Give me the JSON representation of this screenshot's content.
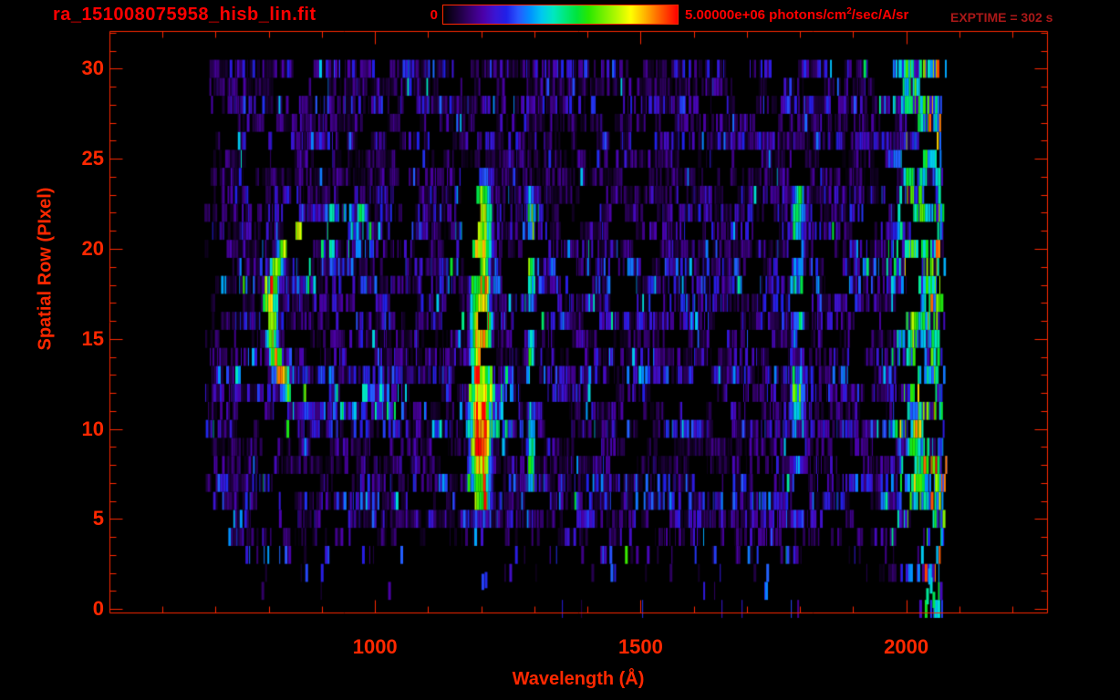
{
  "window": {
    "title": "ra_151008075958_hisb_lin.fit",
    "exptime": "EXPTIME = 302 s"
  },
  "colorbar": {
    "min_label": "0",
    "max_label_prefix": "5.00000e+06 photons/cm",
    "max_label_exponent": "2",
    "max_label_suffix": "/sec/A/sr",
    "range": [
      0,
      5000000
    ]
  },
  "colors": {
    "title_red": "#ff0000",
    "axis_red": "#ff2800",
    "exptime_red": "#aa1818",
    "background": "#000000"
  },
  "chart_data": {
    "type": "heatmap",
    "title": "ra_151008075958_hisb_lin.fit",
    "xlabel": "Wavelength (Å)",
    "ylabel": "Spatial Row (PIxel)",
    "xlim": [
      500,
      2265
    ],
    "ylim": [
      -0.2,
      32.1
    ],
    "x_major_ticks": [
      1000,
      1500,
      2000
    ],
    "x_minor_step": 100,
    "x_minor_range": [
      600,
      2200
    ],
    "y_major_ticks": [
      0,
      5,
      10,
      15,
      20,
      25,
      30
    ],
    "y_minor_step": 1,
    "y_minor_range": [
      0,
      32
    ],
    "colorbar_range_photons": [
      0,
      5000000
    ],
    "intensity_units": "photons/cm^2/sec/A/sr",
    "exptime_seconds": 302,
    "palette": [
      [
        0.0,
        "#000000"
      ],
      [
        0.05,
        "#16002e"
      ],
      [
        0.11,
        "#33006b"
      ],
      [
        0.17,
        "#4b00a8"
      ],
      [
        0.22,
        "#3c14d2"
      ],
      [
        0.27,
        "#2020e8"
      ],
      [
        0.32,
        "#2858ff"
      ],
      [
        0.37,
        "#0090ff"
      ],
      [
        0.42,
        "#00c8f0"
      ],
      [
        0.47,
        "#00e8c0"
      ],
      [
        0.52,
        "#00e87a"
      ],
      [
        0.57,
        "#00e43c"
      ],
      [
        0.62,
        "#28e800"
      ],
      [
        0.68,
        "#70f000"
      ],
      [
        0.74,
        "#b4f800"
      ],
      [
        0.8,
        "#ffff00"
      ],
      [
        0.86,
        "#ffb400"
      ],
      [
        0.92,
        "#ff6400"
      ],
      [
        1.0,
        "#ff0000"
      ]
    ],
    "image": {
      "seed": 151008,
      "data_wavelength_start": 678,
      "data_wavelength_end": 2058,
      "row_min": 0,
      "row_max": 30,
      "noise": {
        "black_fraction": 0.24,
        "base_amplitude": 0.27,
        "bright_streak_prob": 0.055,
        "gap_run_prob": 0.03,
        "row_density": {
          "r0": 0.03,
          "r1": 0.04,
          "r2": 0.09,
          "r3": 0.32,
          "r4": 0.72,
          "default": 1.0
        }
      },
      "features": [
        {
          "kind": "crescent",
          "label": "crescent-arc",
          "center_wavelength": 878,
          "center_row": 16.3,
          "radius_wavelength": 86,
          "radius_rows": 5.4,
          "ring_inner": 0.62,
          "ring_outer": 1.12,
          "angle_min_deg": 58,
          "angle_max_deg": 302,
          "peak_value": 0.6,
          "left_side_boost": 0.1
        },
        {
          "kind": "line",
          "label": "bright-emission-line",
          "wavelength": 1199,
          "core_halfwidth": 9,
          "wing_halfwidth": 26,
          "row_min": 4.7,
          "row_max": 24.5,
          "value": 0.66,
          "hot_rows": [
            9,
            10,
            11,
            15,
            16
          ],
          "hot_boost": 0.15
        },
        {
          "kind": "line",
          "label": "secondary-emission-line",
          "wavelength": 1294,
          "core_halfwidth": 4,
          "wing_halfwidth": 9,
          "row_min": 5.3,
          "row_max": 23.8,
          "value": 0.35,
          "hot_rows": [
            6,
            7,
            8,
            19,
            20,
            21,
            22
          ],
          "hot_boost": 0.1
        },
        {
          "kind": "line",
          "label": "faint-emission-band",
          "wavelength": 1796,
          "core_halfwidth": 7,
          "wing_halfwidth": 16,
          "row_min": 4.2,
          "row_max": 24.6,
          "value": 0.27,
          "hot_rows": [
            10,
            11,
            12,
            20,
            21,
            22
          ],
          "hot_boost": 0.1,
          "patchy": true
        },
        {
          "kind": "patch",
          "label": "cyan-wing-upper",
          "wavelength_min": 905,
          "wavelength_max": 1000,
          "row_min": 20,
          "row_max": 22,
          "value": 0.27,
          "prob": 0.55
        },
        {
          "kind": "patch",
          "label": "cyan-wing-lower",
          "wavelength_min": 905,
          "wavelength_max": 1060,
          "row_min": 11,
          "row_max": 12,
          "value": 0.28,
          "prob": 0.5
        },
        {
          "kind": "patch",
          "label": "cyan-wing-line-right",
          "wavelength_min": 1217,
          "wavelength_max": 1258,
          "row_min": 10,
          "row_max": 12,
          "value": 0.3,
          "prob": 0.55
        },
        {
          "kind": "patch",
          "label": "cyan-wing-line-left",
          "wavelength_min": 1150,
          "wavelength_max": 1180,
          "row_min": 20,
          "row_max": 23,
          "value": 0.24,
          "prob": 0.45
        },
        {
          "kind": "edge_brightening",
          "label": "long-wavelength-brightening",
          "ramp_start": 1945,
          "ramp_full": 2010,
          "value": 0.45,
          "red_speck_start": 2035,
          "red_speck_prob": 0.05
        },
        {
          "kind": "specks",
          "label": "bottom-specks",
          "items": [
            [
              1203,
              1.5,
              0.3
            ],
            [
              1209,
              1.6,
              0.28
            ],
            [
              2040,
              0.7,
              0.5
            ],
            [
              2047,
              1.3,
              0.45
            ],
            [
              2052,
              0.5,
              0.55
            ],
            [
              2044,
              1.8,
              0.4
            ]
          ]
        }
      ]
    }
  }
}
